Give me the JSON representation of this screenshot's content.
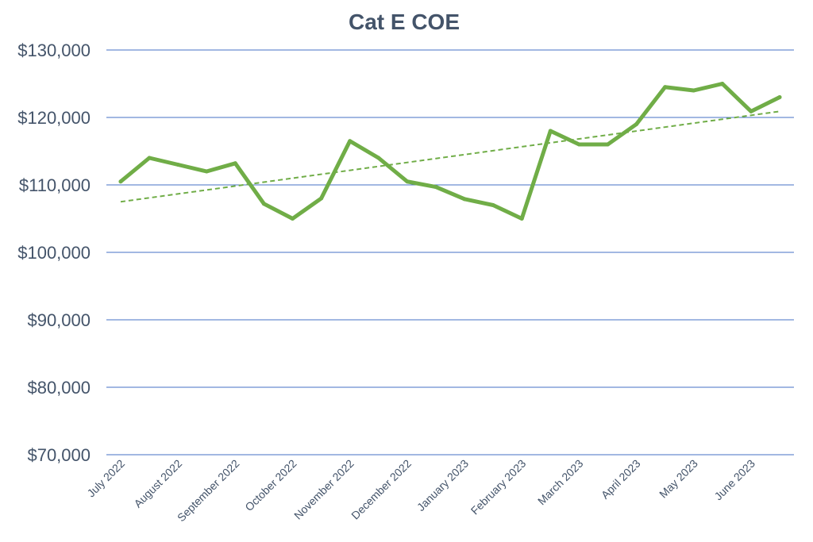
{
  "chart_data": {
    "type": "line",
    "title": "Cat E COE",
    "xlabel": "",
    "ylabel": "",
    "ylim": [
      70000,
      130000
    ],
    "yticks": [
      70000,
      80000,
      90000,
      100000,
      110000,
      120000,
      130000
    ],
    "ytick_labels": [
      "$70,000",
      "$80,000",
      "$90,000",
      "$100,000",
      "$110,000",
      "$120,000",
      "$130,000"
    ],
    "grid": true,
    "legend": "none",
    "x": [
      1,
      2,
      3,
      4,
      5,
      6,
      7,
      8,
      9,
      10,
      11,
      12,
      13,
      14,
      15,
      16,
      17,
      18,
      19,
      20,
      21,
      22,
      23,
      24
    ],
    "xtick_positions": [
      1,
      3,
      5,
      7,
      9,
      11,
      13,
      15,
      17,
      19,
      21,
      23
    ],
    "xtick_labels": [
      "July 2022",
      "August 2022",
      "September 2022",
      "October 2022",
      "November 2022",
      "December 2022",
      "January 2023",
      "February 2023",
      "March 2023",
      "April 2023",
      "May 2023",
      "June 2023"
    ],
    "series": [
      {
        "name": "Cat E COE",
        "values": [
          110500,
          114000,
          113000,
          112000,
          113200,
          107200,
          105000,
          108000,
          116500,
          114000,
          110500,
          109700,
          107900,
          107000,
          105000,
          118000,
          116000,
          116000,
          119000,
          124500,
          124000,
          125000,
          120900,
          123000
        ]
      }
    ],
    "trendline": {
      "type": "linear",
      "start": [
        1,
        107500
      ],
      "end": [
        24,
        120900
      ]
    },
    "colors": {
      "line": "#70ad47",
      "trend": "#70ad47",
      "grid": "#4472c4",
      "text": "#44546a"
    }
  }
}
